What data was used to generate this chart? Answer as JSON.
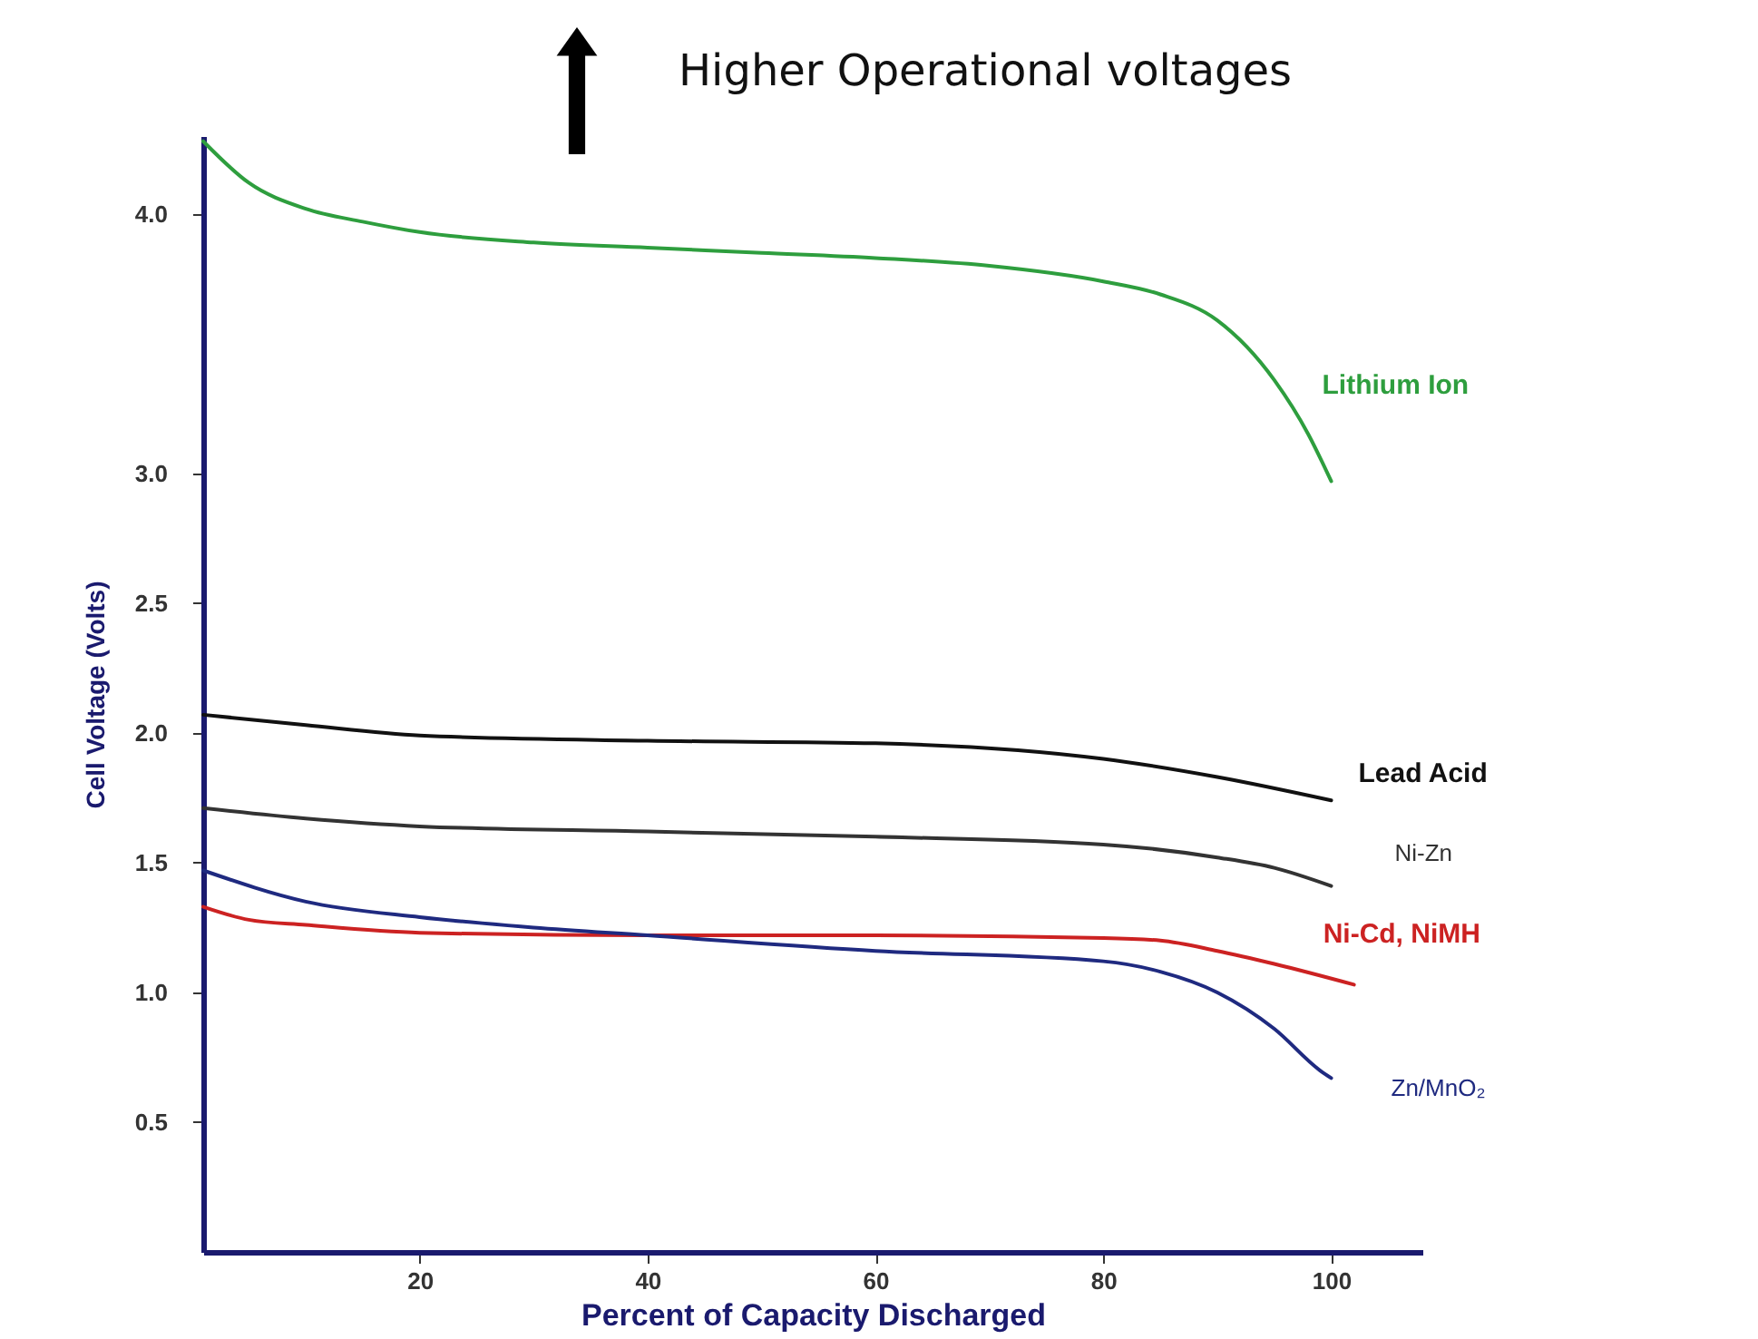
{
  "chart_data": {
    "type": "line",
    "title": "Higher Operational voltages",
    "xlabel": "Percent of Capacity Discharged",
    "ylabel": "Cell Voltage (Volts)",
    "xlim": [
      1,
      108
    ],
    "xticks": [
      20,
      40,
      60,
      80,
      100
    ],
    "ylim": [
      0,
      4.3
    ],
    "yticks": [
      0.5,
      {
        "value": 1.0,
        "label": "1.0"
      },
      1.5,
      {
        "value": 2.0,
        "label": "2.0"
      },
      2.5,
      {
        "value": 3.0,
        "label": "3.0"
      },
      {
        "value": 4.0,
        "label": "4.0"
      }
    ],
    "grid": false,
    "legend": false,
    "marker": "none",
    "line_style": "solid",
    "series": [
      {
        "name": "Lithium Ion",
        "color": "#2e9e3e",
        "x": [
          1,
          5,
          10,
          15,
          20,
          30,
          40,
          50,
          60,
          70,
          80,
          85,
          90,
          95,
          98,
          100
        ],
        "values": [
          4.28,
          4.12,
          4.02,
          3.97,
          3.93,
          3.89,
          3.87,
          3.85,
          3.83,
          3.8,
          3.74,
          3.69,
          3.59,
          3.36,
          3.15,
          2.97
        ]
      },
      {
        "name": "Lead Acid",
        "color": "#111111",
        "x": [
          1,
          10,
          20,
          40,
          60,
          80,
          90,
          100
        ],
        "values": [
          2.07,
          2.03,
          1.99,
          1.97,
          1.96,
          1.9,
          1.83,
          1.74
        ]
      },
      {
        "name": "Ni-Zn",
        "color": "#333333",
        "x": [
          1,
          10,
          20,
          40,
          60,
          80,
          90,
          95,
          100
        ],
        "values": [
          1.71,
          1.67,
          1.64,
          1.62,
          1.6,
          1.57,
          1.52,
          1.48,
          1.41
        ]
      },
      {
        "name": "Ni-Cd,  NiMH",
        "color": "#cc2222",
        "x": [
          1,
          5,
          10,
          20,
          40,
          60,
          80,
          85,
          90,
          95,
          102
        ],
        "values": [
          1.33,
          1.28,
          1.26,
          1.23,
          1.22,
          1.22,
          1.21,
          1.2,
          1.16,
          1.11,
          1.03
        ]
      },
      {
        "name": "Zn/MnO₂",
        "color": "#1f2a80",
        "x": [
          1,
          10,
          20,
          30,
          40,
          60,
          80,
          85,
          90,
          95,
          99,
          100
        ],
        "values": [
          1.47,
          1.35,
          1.29,
          1.25,
          1.22,
          1.16,
          1.12,
          1.08,
          1.0,
          0.86,
          0.7,
          0.67
        ]
      }
    ]
  }
}
